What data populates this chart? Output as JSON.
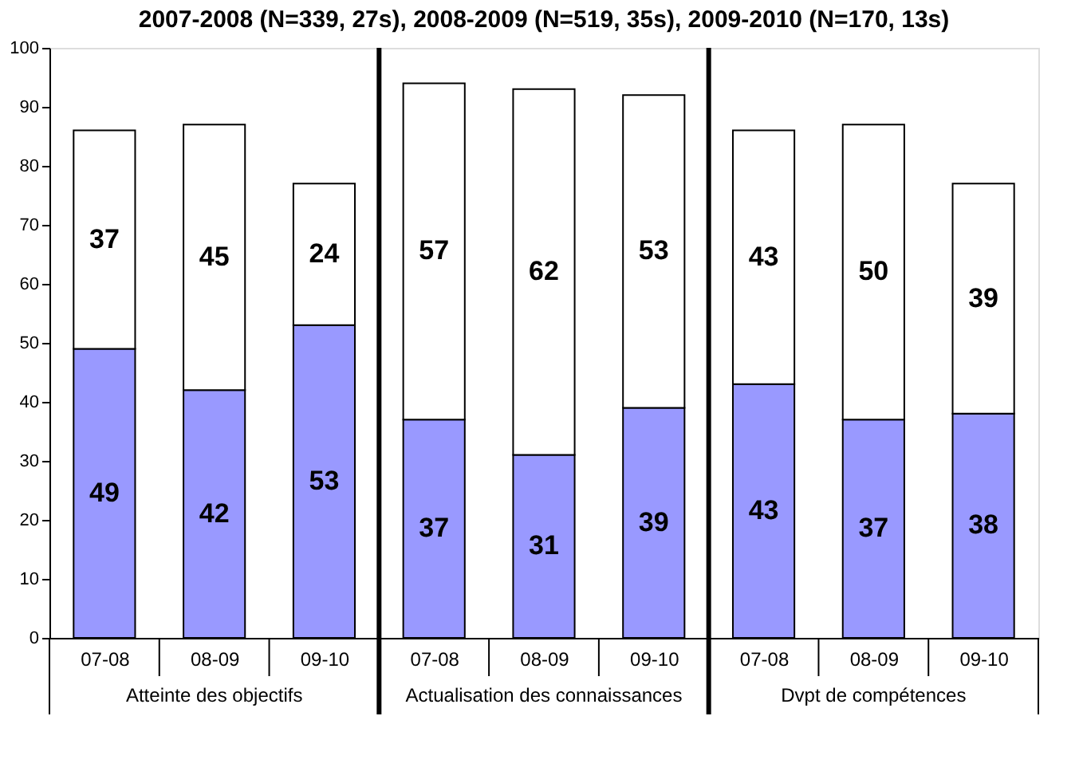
{
  "chart_data": {
    "type": "bar",
    "stacked": true,
    "title": "2007-2008 (N=339, 27s), 2008-2009 (N=519, 35s), 2009-2010 (N=170, 13s)",
    "categories": [
      "07-08",
      "08-09",
      "09-10",
      "07-08",
      "08-09",
      "09-10",
      "07-08",
      "08-09",
      "09-10"
    ],
    "series": [
      {
        "color": "#9999ff",
        "values": [
          49,
          42,
          53,
          37,
          31,
          39,
          43,
          37,
          38
        ]
      },
      {
        "color": "#ffffff",
        "values": [
          37,
          45,
          24,
          57,
          62,
          53,
          43,
          50,
          39
        ]
      }
    ],
    "data_labels": true,
    "annotations": [
      "Atteinte des objectifs",
      "Actualisation des connaissances",
      "Dvpt de compétences"
    ],
    "ylim": [
      0,
      100
    ],
    "yticks": [
      0,
      10,
      20,
      30,
      40,
      50,
      60,
      70,
      80,
      90,
      100
    ],
    "grid": false
  }
}
